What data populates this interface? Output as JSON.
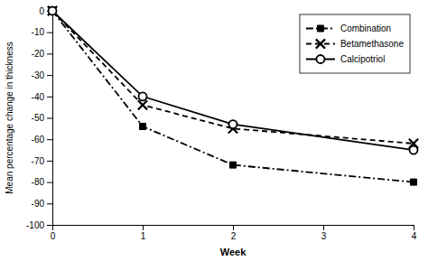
{
  "chart_data": {
    "type": "line",
    "xlabel": "Week",
    "ylabel": "Mean percentage change in thickness",
    "x": [
      0,
      1,
      2,
      4
    ],
    "series": [
      {
        "name": "Combination",
        "color": "black",
        "marker": "square",
        "line_style": "dashdot",
        "values": [
          0,
          -54,
          -72,
          -80
        ]
      },
      {
        "name": "Betamethasone",
        "color": "black",
        "marker": "x",
        "line_style": "dashed",
        "values": [
          0,
          -44,
          -55,
          -62
        ]
      },
      {
        "name": "Calcipotriol",
        "color": "black",
        "marker": "circle",
        "line_style": "solid",
        "values": [
          0,
          -40,
          -53,
          -65
        ]
      }
    ],
    "xlim": [
      0,
      4
    ],
    "ylim": [
      -100,
      0
    ],
    "xticks": [
      0,
      1,
      2,
      3,
      4
    ],
    "yticks": [
      0,
      -10,
      -20,
      -30,
      -40,
      -50,
      -60,
      -70,
      -80,
      -90,
      -100
    ],
    "grid": false,
    "legend": "upper right"
  }
}
